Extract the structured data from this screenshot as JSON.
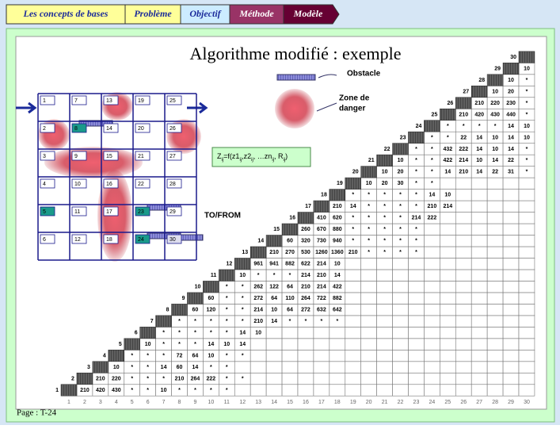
{
  "tabs": [
    "Les concepts de bases",
    "Problème",
    "Objectif",
    "Méthode",
    "Modèle"
  ],
  "title": "Algorithme modifié : exemple",
  "legend": {
    "obstacle": "Obstacle",
    "danger": [
      "Zone de",
      "danger"
    ]
  },
  "formula": [
    "Z",
    "ij",
    "=f(z1",
    "ij",
    ",z2",
    "ij",
    ", …zn",
    "ij",
    ", R",
    "ij",
    ")"
  ],
  "to_from": "TO/FROM",
  "grid": {
    "cells": [
      1,
      2,
      3,
      4,
      5,
      6,
      7,
      8,
      9,
      10,
      11,
      12,
      13,
      14,
      15,
      16,
      17,
      18,
      19,
      20,
      21,
      22,
      23,
      24,
      25,
      26,
      27,
      28,
      29,
      30
    ]
  },
  "matrix": {
    "column_labels": [
      1,
      2,
      3,
      4,
      5,
      6,
      7,
      8,
      9,
      10,
      11,
      12,
      13,
      14,
      15,
      16,
      17,
      18,
      19,
      20,
      21,
      22,
      23,
      24,
      25,
      26,
      27,
      28,
      29,
      30
    ],
    "rows": [
      {
        "label": 1,
        "cells": [
          "210",
          "420",
          "430",
          "*",
          "*",
          "10",
          "*",
          "*",
          "*",
          "*"
        ]
      },
      {
        "label": 2,
        "cells": [
          "210",
          "220",
          "*",
          "*",
          "*",
          "210",
          "264",
          "222",
          "*",
          "*"
        ]
      },
      {
        "label": 3,
        "cells": [
          "10",
          "*",
          "*",
          "14",
          "60",
          "14",
          "*",
          "*"
        ]
      },
      {
        "label": 4,
        "cells": [
          "*",
          "*",
          "*",
          "72",
          "64",
          "10",
          "*",
          "*"
        ]
      },
      {
        "label": 5,
        "cells": [
          "10",
          "*",
          "*",
          "*",
          "14",
          "10",
          "14"
        ]
      },
      {
        "label": 6,
        "cells": [
          "*",
          "*",
          "*",
          "*",
          "*",
          "14",
          "10"
        ]
      },
      {
        "label": 7,
        "cells": [
          "*",
          "*",
          "*",
          "*",
          "*",
          "210",
          "14",
          "*",
          "*",
          "*",
          "*"
        ]
      },
      {
        "label": 8,
        "cells": [
          "60",
          "120",
          "*",
          "*",
          "214",
          "10",
          "64",
          "272",
          "632",
          "642"
        ]
      },
      {
        "label": 9,
        "cells": [
          "60",
          "*",
          "*",
          "272",
          "64",
          "110",
          "264",
          "722",
          "882"
        ]
      },
      {
        "label": 10,
        "cells": [
          "*",
          "*",
          "262",
          "122",
          "64",
          "210",
          "214",
          "422"
        ]
      },
      {
        "label": 11,
        "cells": [
          "10",
          "*",
          "*",
          "*",
          "214",
          "210",
          "14"
        ]
      },
      {
        "label": 12,
        "cells": [
          "961",
          "941",
          "882",
          "622",
          "214",
          "10"
        ]
      },
      {
        "label": 13,
        "cells": [
          "210",
          "270",
          "530",
          "1260",
          "1360",
          "210",
          "*",
          "*",
          "*",
          "*"
        ]
      },
      {
        "label": 14,
        "cells": [
          "60",
          "320",
          "730",
          "940",
          "*",
          "*",
          "*",
          "*",
          "*"
        ]
      },
      {
        "label": 15,
        "cells": [
          "260",
          "670",
          "880",
          "*",
          "*",
          "*",
          "*",
          "*"
        ]
      },
      {
        "label": 16,
        "cells": [
          "410",
          "620",
          "*",
          "*",
          "*",
          "*",
          "214",
          "222"
        ]
      },
      {
        "label": 17,
        "cells": [
          "210",
          "14",
          "*",
          "*",
          "*",
          "*",
          "210",
          "214"
        ]
      },
      {
        "label": 18,
        "cells": [
          "*",
          "*",
          "*",
          "*",
          "*",
          "14",
          "10"
        ]
      },
      {
        "label": 19,
        "cells": [
          "10",
          "20",
          "30",
          "*",
          "*"
        ]
      },
      {
        "label": 20,
        "cells": [
          "10",
          "20",
          "*",
          "*",
          "14",
          "210",
          "14",
          "22",
          "31",
          "*"
        ]
      },
      {
        "label": 21,
        "cells": [
          "10",
          "*",
          "*",
          "422",
          "214",
          "10",
          "14",
          "22",
          "*"
        ]
      },
      {
        "label": 22,
        "cells": [
          "*",
          "*",
          "432",
          "222",
          "14",
          "10",
          "14",
          "*"
        ]
      },
      {
        "label": 23,
        "cells": [
          "*",
          "*",
          "22",
          "14",
          "10",
          "14",
          "10"
        ]
      },
      {
        "label": 24,
        "cells": [
          "*",
          "*",
          "*",
          "*",
          "14",
          "10"
        ]
      },
      {
        "label": 25,
        "cells": [
          "210",
          "420",
          "430",
          "440",
          "*"
        ]
      },
      {
        "label": 26,
        "cells": [
          "210",
          "220",
          "230",
          "*"
        ]
      },
      {
        "label": 27,
        "cells": [
          "10",
          "20",
          "*"
        ]
      },
      {
        "label": 28,
        "cells": [
          "10",
          "*"
        ]
      },
      {
        "label": 29,
        "cells": [
          "10"
        ]
      },
      {
        "label": 30,
        "cells": []
      }
    ]
  },
  "footer": "Page : T-24"
}
